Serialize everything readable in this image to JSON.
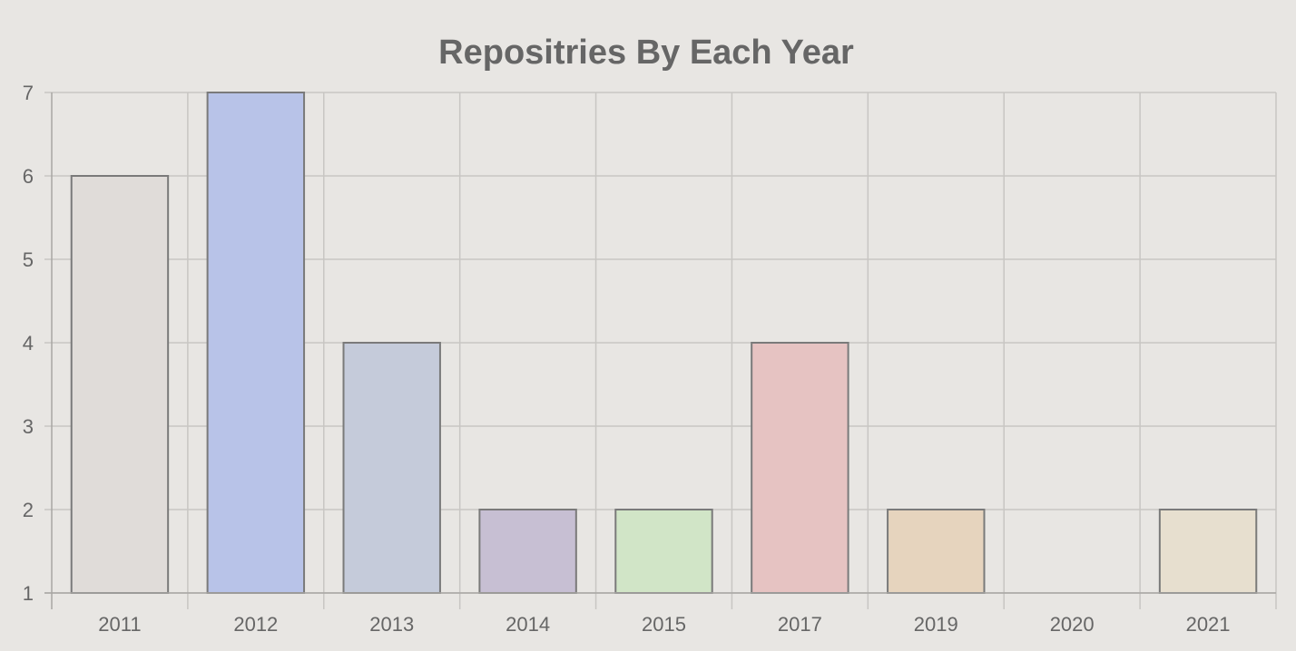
{
  "chart_data": {
    "type": "bar",
    "title": "Repositries By Each Year",
    "xlabel": "",
    "ylabel": "",
    "categories": [
      "2011",
      "2012",
      "2013",
      "2014",
      "2015",
      "2017",
      "2019",
      "2020",
      "2021"
    ],
    "values": [
      6,
      7,
      4,
      2,
      2,
      4,
      2,
      1,
      2
    ],
    "ylim": [
      1,
      7
    ],
    "yticks": [
      "1",
      "2",
      "3",
      "4",
      "5",
      "6",
      "7"
    ],
    "grid": true,
    "legend": "none",
    "bar_colors": [
      "#e0dcd9",
      "#b8c3e8",
      "#c5cbda",
      "#c7bfd3",
      "#d1e5c7",
      "#e6c3c2",
      "#e6d4be",
      "#e9e3d9",
      "#e7dfcf"
    ]
  }
}
